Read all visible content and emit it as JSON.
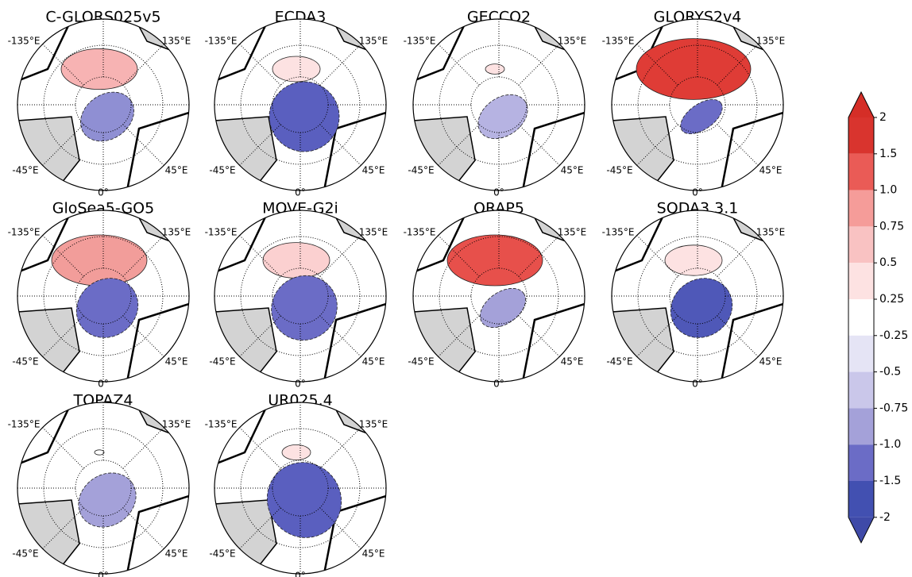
{
  "panels": [
    {
      "title": "C-GLORS025v5"
    },
    {
      "title": "ECDA3"
    },
    {
      "title": "GECCO2"
    },
    {
      "title": "GLORYS2v4"
    },
    {
      "title": "GloSea5-GO5"
    },
    {
      "title": "MOVE-G2i"
    },
    {
      "title": "ORAP5"
    },
    {
      "title": "SODA3.3.1"
    },
    {
      "title": "TOPAZ4"
    },
    {
      "title": "UR025.4"
    }
  ],
  "lon_labels": {
    "w135": "-135°E",
    "e135": "135°E",
    "w45": "-45°E",
    "e45": "45°E",
    "zero": "0°"
  },
  "colorbar": {
    "ticks": [
      2,
      1.5,
      {
        "value": 1,
        "label": "1.0"
      },
      0.75,
      0.5,
      0.25,
      -0.25,
      -0.5,
      -0.75,
      {
        "value": -1,
        "label": "-1.0"
      },
      -1.5,
      -2
    ],
    "colors": [
      "#d9342e",
      "#ea5b56",
      "#f59c99",
      "#f9c2c2",
      "#fde2e2",
      "#ffffff",
      "#e5e4f5",
      "#cac7ea",
      "#a4a1d9",
      "#6b6cc6",
      "#4250b1"
    ],
    "extend_colors": [
      "#d52e27",
      "#3f4aa8"
    ]
  }
}
